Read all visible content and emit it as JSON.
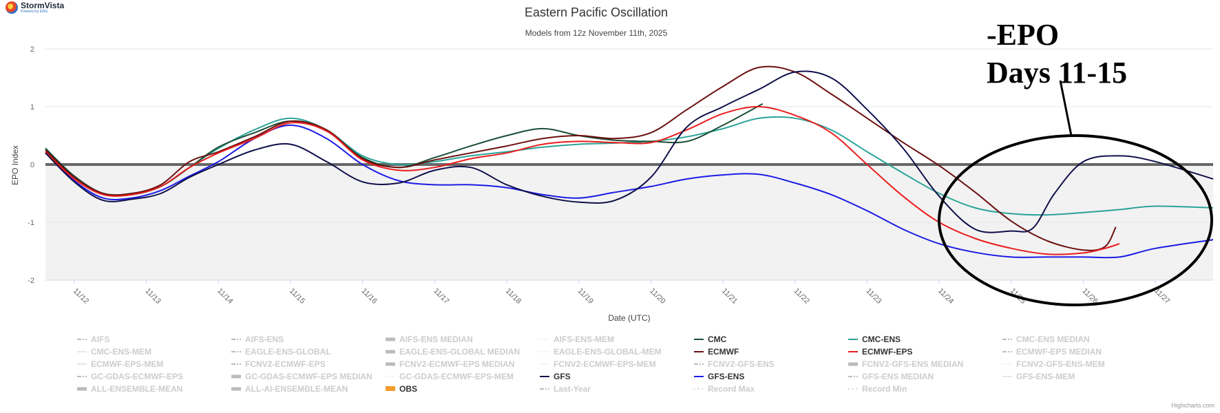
{
  "logo": {
    "name": "StormVista",
    "tagline": "Powered by EWS"
  },
  "credits": "Highcharts.com",
  "annotation": {
    "line1": "-EPO",
    "line2": "Days 11-15"
  },
  "colors": {
    "CMC": "#1b4d36",
    "CMC-ENS": "#2aa397",
    "ECMWF": "#6b0f0f",
    "ECMWF-EPS": "#ec1c1c",
    "GFS": "#0f0f4a",
    "GFS-ENS": "#1b1be6"
  },
  "chart_data": {
    "type": "line",
    "title": "Eastern Pacific Oscillation",
    "subtitle": "Models from 12z November 11th, 2025",
    "xlabel": "Date (UTC)",
    "ylabel": "EPO Index",
    "xlim": [
      11.6,
      27.8
    ],
    "ylim": [
      -2,
      2
    ],
    "yticks": [
      2,
      1,
      0,
      -1,
      -2
    ],
    "xticks": [
      {
        "v": 12,
        "label": "11/12"
      },
      {
        "v": 13,
        "label": "11/13"
      },
      {
        "v": 14,
        "label": "11/14"
      },
      {
        "v": 15,
        "label": "11/15"
      },
      {
        "v": 16,
        "label": "11/16"
      },
      {
        "v": 17,
        "label": "11/17"
      },
      {
        "v": 18,
        "label": "11/18"
      },
      {
        "v": 19,
        "label": "11/19"
      },
      {
        "v": 20,
        "label": "11/20"
      },
      {
        "v": 21,
        "label": "11/21"
      },
      {
        "v": 22,
        "label": "11/22"
      },
      {
        "v": 23,
        "label": "11/23"
      },
      {
        "v": 24,
        "label": "11/24"
      },
      {
        "v": 25,
        "label": "11/25"
      },
      {
        "v": 26,
        "label": "11/26"
      },
      {
        "v": 27,
        "label": "11/27"
      }
    ],
    "grid": true,
    "series": [
      {
        "name": "CMC-ENS",
        "color": "#2aa397",
        "points": [
          [
            11.6,
            0.28
          ],
          [
            12.0,
            -0.2
          ],
          [
            12.4,
            -0.5
          ],
          [
            12.8,
            -0.5
          ],
          [
            13.2,
            -0.38
          ],
          [
            13.6,
            -0.05
          ],
          [
            14.0,
            0.28
          ],
          [
            14.5,
            0.6
          ],
          [
            15.0,
            0.8
          ],
          [
            15.5,
            0.6
          ],
          [
            16.0,
            0.15
          ],
          [
            16.5,
            0.0
          ],
          [
            17.0,
            0.05
          ],
          [
            17.5,
            0.15
          ],
          [
            18.0,
            0.22
          ],
          [
            18.5,
            0.3
          ],
          [
            19.0,
            0.35
          ],
          [
            19.5,
            0.37
          ],
          [
            20.0,
            0.4
          ],
          [
            20.5,
            0.48
          ],
          [
            21.0,
            0.62
          ],
          [
            21.5,
            0.8
          ],
          [
            22.0,
            0.8
          ],
          [
            22.5,
            0.6
          ],
          [
            23.0,
            0.22
          ],
          [
            23.5,
            -0.15
          ],
          [
            24.0,
            -0.5
          ],
          [
            24.5,
            -0.75
          ],
          [
            25.0,
            -0.85
          ],
          [
            25.5,
            -0.87
          ],
          [
            26.0,
            -0.83
          ],
          [
            26.5,
            -0.78
          ],
          [
            27.0,
            -0.72
          ],
          [
            27.8,
            -0.75
          ]
        ]
      },
      {
        "name": "GFS-ENS",
        "color": "#1b1be6",
        "points": [
          [
            11.6,
            0.2
          ],
          [
            12.0,
            -0.28
          ],
          [
            12.4,
            -0.58
          ],
          [
            12.8,
            -0.58
          ],
          [
            13.2,
            -0.45
          ],
          [
            13.6,
            -0.2
          ],
          [
            14.0,
            0.05
          ],
          [
            14.5,
            0.45
          ],
          [
            15.0,
            0.68
          ],
          [
            15.5,
            0.45
          ],
          [
            16.0,
            0.0
          ],
          [
            16.5,
            -0.28
          ],
          [
            17.0,
            -0.35
          ],
          [
            17.5,
            -0.35
          ],
          [
            18.0,
            -0.4
          ],
          [
            18.5,
            -0.52
          ],
          [
            19.0,
            -0.58
          ],
          [
            19.5,
            -0.48
          ],
          [
            20.0,
            -0.38
          ],
          [
            20.5,
            -0.25
          ],
          [
            21.0,
            -0.18
          ],
          [
            21.5,
            -0.17
          ],
          [
            22.0,
            -0.32
          ],
          [
            22.5,
            -0.52
          ],
          [
            23.0,
            -0.8
          ],
          [
            23.5,
            -1.12
          ],
          [
            24.0,
            -1.37
          ],
          [
            24.5,
            -1.52
          ],
          [
            25.0,
            -1.6
          ],
          [
            25.5,
            -1.6
          ],
          [
            26.0,
            -1.6
          ],
          [
            26.5,
            -1.6
          ],
          [
            27.0,
            -1.45
          ],
          [
            27.8,
            -1.3
          ]
        ]
      },
      {
        "name": "CMC",
        "color": "#1b4d36",
        "points": [
          [
            11.6,
            0.28
          ],
          [
            12.0,
            -0.2
          ],
          [
            12.4,
            -0.5
          ],
          [
            12.8,
            -0.52
          ],
          [
            13.2,
            -0.38
          ],
          [
            13.6,
            -0.05
          ],
          [
            14.0,
            0.3
          ],
          [
            14.5,
            0.55
          ],
          [
            15.0,
            0.75
          ],
          [
            15.5,
            0.58
          ],
          [
            16.0,
            0.12
          ],
          [
            16.5,
            -0.05
          ],
          [
            17.0,
            0.12
          ],
          [
            17.5,
            0.32
          ],
          [
            18.0,
            0.5
          ],
          [
            18.5,
            0.62
          ],
          [
            19.0,
            0.5
          ],
          [
            19.5,
            0.42
          ],
          [
            20.0,
            0.4
          ],
          [
            20.5,
            0.4
          ],
          [
            21.0,
            0.68
          ],
          [
            21.55,
            1.05
          ]
        ]
      },
      {
        "name": "ECMWF",
        "color": "#6b0f0f",
        "points": [
          [
            11.6,
            0.25
          ],
          [
            12.0,
            -0.22
          ],
          [
            12.4,
            -0.5
          ],
          [
            12.8,
            -0.5
          ],
          [
            13.2,
            -0.35
          ],
          [
            13.6,
            0.05
          ],
          [
            14.0,
            0.22
          ],
          [
            14.5,
            0.48
          ],
          [
            15.0,
            0.75
          ],
          [
            15.5,
            0.6
          ],
          [
            16.0,
            0.1
          ],
          [
            16.5,
            -0.05
          ],
          [
            17.0,
            0.08
          ],
          [
            17.5,
            0.2
          ],
          [
            18.0,
            0.32
          ],
          [
            18.5,
            0.45
          ],
          [
            19.0,
            0.5
          ],
          [
            19.5,
            0.45
          ],
          [
            20.0,
            0.55
          ],
          [
            20.5,
            0.95
          ],
          [
            21.0,
            1.35
          ],
          [
            21.5,
            1.68
          ],
          [
            22.0,
            1.6
          ],
          [
            22.5,
            1.22
          ],
          [
            23.0,
            0.8
          ],
          [
            23.5,
            0.38
          ],
          [
            24.0,
            -0.02
          ],
          [
            24.5,
            -0.48
          ],
          [
            25.0,
            -0.98
          ],
          [
            25.5,
            -1.32
          ],
          [
            26.0,
            -1.48
          ],
          [
            26.3,
            -1.42
          ],
          [
            26.45,
            -1.08
          ]
        ]
      },
      {
        "name": "ECMWF-EPS",
        "color": "#ec1c1c",
        "points": [
          [
            11.6,
            0.22
          ],
          [
            12.0,
            -0.25
          ],
          [
            12.4,
            -0.52
          ],
          [
            12.8,
            -0.52
          ],
          [
            13.2,
            -0.38
          ],
          [
            13.6,
            -0.05
          ],
          [
            14.0,
            0.2
          ],
          [
            14.5,
            0.45
          ],
          [
            15.0,
            0.72
          ],
          [
            15.5,
            0.58
          ],
          [
            16.0,
            0.08
          ],
          [
            16.5,
            -0.1
          ],
          [
            17.0,
            -0.05
          ],
          [
            17.5,
            0.1
          ],
          [
            18.0,
            0.2
          ],
          [
            18.5,
            0.35
          ],
          [
            19.0,
            0.4
          ],
          [
            19.5,
            0.38
          ],
          [
            20.0,
            0.38
          ],
          [
            20.5,
            0.6
          ],
          [
            21.0,
            0.88
          ],
          [
            21.5,
            1.0
          ],
          [
            22.0,
            0.85
          ],
          [
            22.5,
            0.55
          ],
          [
            23.0,
            0.0
          ],
          [
            23.5,
            -0.55
          ],
          [
            24.0,
            -1.0
          ],
          [
            24.5,
            -1.28
          ],
          [
            25.0,
            -1.45
          ],
          [
            25.5,
            -1.55
          ],
          [
            26.0,
            -1.53
          ],
          [
            26.3,
            -1.45
          ],
          [
            26.5,
            -1.37
          ]
        ]
      },
      {
        "name": "GFS",
        "color": "#0f0f4a",
        "points": [
          [
            11.6,
            0.2
          ],
          [
            12.0,
            -0.3
          ],
          [
            12.4,
            -0.62
          ],
          [
            12.8,
            -0.6
          ],
          [
            13.2,
            -0.5
          ],
          [
            13.6,
            -0.22
          ],
          [
            14.0,
            0.0
          ],
          [
            14.5,
            0.25
          ],
          [
            15.0,
            0.35
          ],
          [
            15.5,
            0.05
          ],
          [
            16.0,
            -0.3
          ],
          [
            16.5,
            -0.32
          ],
          [
            17.0,
            -0.1
          ],
          [
            17.5,
            -0.05
          ],
          [
            18.0,
            -0.35
          ],
          [
            18.5,
            -0.55
          ],
          [
            19.0,
            -0.65
          ],
          [
            19.5,
            -0.62
          ],
          [
            20.0,
            -0.22
          ],
          [
            20.5,
            0.65
          ],
          [
            21.0,
            1.0
          ],
          [
            21.5,
            1.3
          ],
          [
            22.0,
            1.6
          ],
          [
            22.5,
            1.5
          ],
          [
            23.0,
            0.95
          ],
          [
            23.5,
            0.28
          ],
          [
            24.0,
            -0.55
          ],
          [
            24.5,
            -1.12
          ],
          [
            25.0,
            -1.15
          ],
          [
            25.3,
            -1.1
          ],
          [
            25.6,
            -0.5
          ],
          [
            26.0,
            0.05
          ],
          [
            26.5,
            0.15
          ],
          [
            27.0,
            0.05
          ],
          [
            27.8,
            -0.25
          ]
        ]
      }
    ],
    "legend": [
      {
        "name": "AIFS",
        "style": "dashdot",
        "color": "#bbbbbb"
      },
      {
        "name": "AIFS-ENS",
        "style": "dashdot",
        "color": "#bbbbbb"
      },
      {
        "name": "AIFS-ENS MEDIAN",
        "style": "solid-thick",
        "color": "#bbbbbb"
      },
      {
        "name": "AIFS-ENS-MEM",
        "style": "dotted",
        "color": "#cccccc"
      },
      {
        "name": "CMC",
        "style": "solid",
        "color": "#1b4d36",
        "active": true
      },
      {
        "name": "CMC-ENS",
        "style": "solid",
        "color": "#2aa397",
        "active": true
      },
      {
        "name": "CMC-ENS MEDIAN",
        "style": "dashdot",
        "color": "#bbbbbb"
      },
      {
        "name": "CMC-ENS-MEM",
        "style": "thin",
        "color": "#cccccc"
      },
      {
        "name": "EAGLE-ENS-GLOBAL",
        "style": "dashdot",
        "color": "#bbbbbb"
      },
      {
        "name": "EAGLE-ENS-GLOBAL MEDIAN",
        "style": "solid-thick",
        "color": "#bbbbbb"
      },
      {
        "name": "EAGLE-ENS-GLOBAL-MEM",
        "style": "dotted",
        "color": "#cccccc"
      },
      {
        "name": "ECMWF",
        "style": "solid",
        "color": "#6b0f0f",
        "active": true
      },
      {
        "name": "ECMWF-EPS",
        "style": "solid",
        "color": "#ec1c1c",
        "active": true
      },
      {
        "name": "ECMWF-EPS MEDIAN",
        "style": "dashdot",
        "color": "#bbbbbb"
      },
      {
        "name": "ECMWF-EPS-MEM",
        "style": "thin",
        "color": "#cccccc"
      },
      {
        "name": "FCNV2-ECMWF-EPS",
        "style": "dashdot",
        "color": "#bbbbbb"
      },
      {
        "name": "FCNV2-ECMWF-EPS MEDIAN",
        "style": "solid-thick",
        "color": "#bbbbbb"
      },
      {
        "name": "FCNV2-ECMWF-EPS-MEM",
        "style": "dotted",
        "color": "#cccccc"
      },
      {
        "name": "FCNV2-GFS-ENS",
        "style": "dashdot",
        "color": "#bbbbbb"
      },
      {
        "name": "FCNV2-GFS-ENS MEDIAN",
        "style": "solid-thick",
        "color": "#bbbbbb"
      },
      {
        "name": "FCNV2-GFS-ENS-MEM",
        "style": "dotted",
        "color": "#cccccc"
      },
      {
        "name": "GC-GDAS-ECMWF-EPS",
        "style": "dashdot",
        "color": "#bbbbbb"
      },
      {
        "name": "GC-GDAS-ECMWF-EPS MEDIAN",
        "style": "solid-thick",
        "color": "#bbbbbb"
      },
      {
        "name": "GC-GDAS-ECMWF-EPS-MEM",
        "style": "dotted",
        "color": "#cccccc"
      },
      {
        "name": "GFS",
        "style": "solid",
        "color": "#0f0f4a",
        "active": true
      },
      {
        "name": "GFS-ENS",
        "style": "solid",
        "color": "#1b1be6",
        "active": true
      },
      {
        "name": "GFS-ENS MEDIAN",
        "style": "dashdot",
        "color": "#bbbbbb"
      },
      {
        "name": "GFS-ENS-MEM",
        "style": "thin",
        "color": "#cccccc"
      },
      {
        "name": "ALL-ENSEMBLE-MEAN",
        "style": "solid-thick",
        "color": "#bbbbbb"
      },
      {
        "name": "ALL-AI-ENSEMBLE-MEAN",
        "style": "solid-thick",
        "color": "#bbbbbb"
      },
      {
        "name": "OBS",
        "style": "box",
        "color": "#f39c2c",
        "active": true
      },
      {
        "name": "Last-Year",
        "style": "dashdot",
        "color": "#bbbbbb"
      },
      {
        "name": "Record Max",
        "style": "dots",
        "color": "#bbbbbb"
      },
      {
        "name": "Record Min",
        "style": "dots",
        "color": "#bbbbbb"
      }
    ]
  }
}
